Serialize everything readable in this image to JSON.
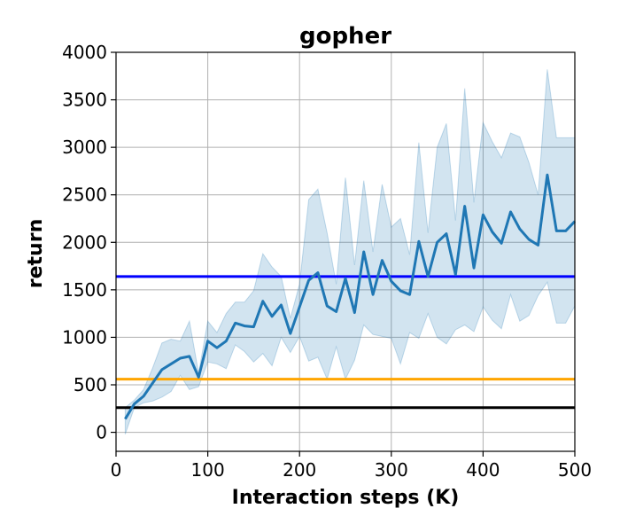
{
  "chart_data": {
    "type": "line",
    "title": "gopher",
    "xlabel": "Interaction steps (K)",
    "ylabel": "return",
    "xlim": [
      0,
      500
    ],
    "ylim": [
      -200,
      4000
    ],
    "xticks": [
      0,
      100,
      200,
      300,
      400,
      500
    ],
    "yticks": [
      0,
      500,
      1000,
      1500,
      2000,
      2500,
      3000,
      3500,
      4000
    ],
    "grid": true,
    "series": [
      {
        "color": "#1f77b4",
        "band_color": "#1f77b4",
        "x": [
          10,
          20,
          30,
          40,
          50,
          60,
          70,
          80,
          90,
          100,
          110,
          120,
          130,
          140,
          150,
          160,
          170,
          180,
          190,
          200,
          210,
          220,
          230,
          240,
          250,
          260,
          270,
          280,
          290,
          300,
          310,
          320,
          330,
          340,
          350,
          360,
          370,
          380,
          390,
          400,
          410,
          420,
          430,
          440,
          450,
          460,
          470,
          480,
          490,
          500
        ],
        "mean": [
          140,
          300,
          380,
          520,
          660,
          720,
          780,
          800,
          580,
          960,
          890,
          960,
          1150,
          1120,
          1110,
          1380,
          1220,
          1340,
          1040,
          1320,
          1600,
          1680,
          1330,
          1270,
          1620,
          1260,
          1900,
          1450,
          1810,
          1590,
          1490,
          1450,
          2010,
          1640,
          2000,
          2090,
          1660,
          2380,
          1730,
          2290,
          2110,
          1990,
          2320,
          2140,
          2030,
          1970,
          2710,
          2120,
          2120,
          2220
        ],
        "upper": [
          260,
          340,
          450,
          680,
          940,
          980,
          960,
          1170,
          620,
          1170,
          1050,
          1250,
          1370,
          1370,
          1490,
          1880,
          1740,
          1640,
          1200,
          1560,
          2450,
          2560,
          2100,
          1560,
          2680,
          1760,
          2650,
          1900,
          2610,
          2160,
          2250,
          1870,
          3050,
          2100,
          3000,
          3250,
          2230,
          3620,
          2420,
          3260,
          3060,
          2890,
          3150,
          3110,
          2840,
          2500,
          3820,
          3100,
          3100,
          3100
        ],
        "lower": [
          -20,
          260,
          310,
          330,
          370,
          430,
          600,
          450,
          480,
          740,
          720,
          670,
          920,
          850,
          740,
          830,
          700,
          1000,
          840,
          1010,
          750,
          790,
          560,
          900,
          560,
          760,
          1130,
          1030,
          1010,
          990,
          720,
          1050,
          990,
          1250,
          1000,
          930,
          1080,
          1130,
          1060,
          1320,
          1180,
          1090,
          1450,
          1170,
          1230,
          1440,
          1580,
          1150,
          1150,
          1330
        ]
      }
    ],
    "reference_lines": [
      {
        "y": 1640,
        "color": "#0000ff"
      },
      {
        "y": 560,
        "color": "#ffa500"
      },
      {
        "y": 260,
        "color": "#000000"
      }
    ]
  }
}
